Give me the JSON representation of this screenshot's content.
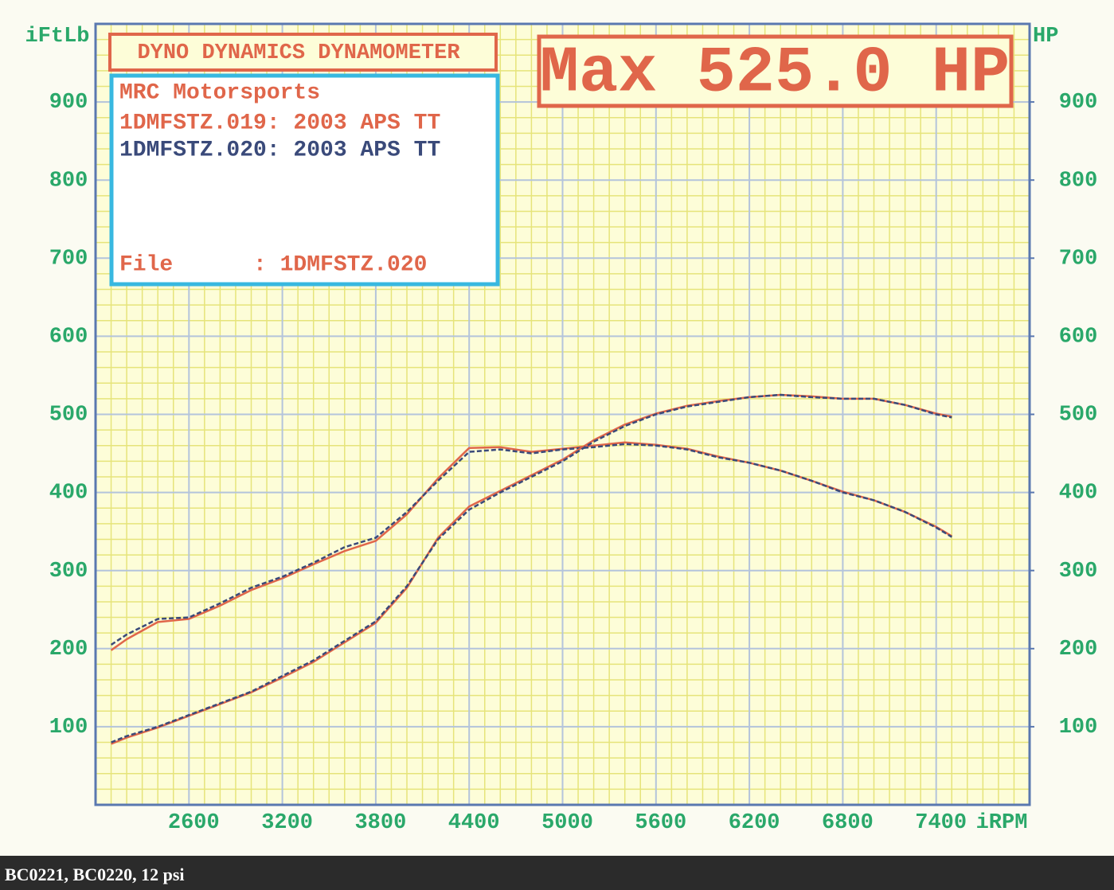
{
  "chart_data": {
    "type": "line",
    "header": "DYNO DYNAMICS DYNAMOMETER",
    "shop": "MRC Motorsports",
    "file": "File      : 1DMFSTZ.020",
    "max_label": "Max 525.0 HP",
    "y_label": "iFtLb",
    "y2_label": "HP",
    "x_label": "iRPM",
    "x": [
      2100,
      2200,
      2400,
      2600,
      2800,
      3000,
      3200,
      3400,
      3600,
      3800,
      4000,
      4200,
      4400,
      4600,
      4800,
      5000,
      5200,
      5400,
      5600,
      5800,
      6000,
      6200,
      6400,
      6600,
      6800,
      7000,
      7200,
      7400,
      7500
    ],
    "series": [
      {
        "name": "1DMFSTZ.019: 2003 APS TT",
        "color": "#e0664a",
        "values": [
          198,
          212,
          234,
          238,
          255,
          275,
          290,
          308,
          325,
          338,
          372,
          418,
          457,
          458,
          452,
          456,
          460,
          464,
          461,
          456,
          446,
          438,
          428,
          415,
          401,
          390,
          375,
          356,
          344
        ]
      },
      {
        "name": "1DMFSTZ.020: 2003 APS TT",
        "color": "#3a4a7a",
        "values": [
          205,
          218,
          238,
          240,
          258,
          278,
          292,
          310,
          330,
          342,
          375,
          415,
          452,
          455,
          450,
          455,
          458,
          462,
          460,
          455,
          445,
          438,
          428,
          415,
          400,
          390,
          375,
          355,
          343
        ]
      },
      {
        "color": "#e0664a",
        "axis": "y2",
        "values": [
          78,
          86,
          99,
          114,
          129,
          144,
          163,
          183,
          208,
          233,
          278,
          342,
          382,
          402,
          422,
          442,
          467,
          487,
          501,
          511,
          517,
          522,
          525,
          523,
          520,
          520,
          512,
          501,
          497
        ]
      },
      {
        "color": "#3a4a7a",
        "axis": "y2",
        "values": [
          80,
          88,
          100,
          115,
          130,
          145,
          165,
          185,
          210,
          235,
          280,
          340,
          378,
          400,
          420,
          440,
          465,
          485,
          500,
          510,
          516,
          522,
          525,
          522,
          520,
          520,
          512,
          500,
          496
        ]
      }
    ],
    "xlim": [
      2000,
      8000
    ],
    "xticks": [
      2600,
      3200,
      3800,
      4400,
      5000,
      5600,
      6200,
      6800,
      7400
    ],
    "ylim": [
      0,
      1000
    ],
    "yticks": [
      100,
      200,
      300,
      400,
      500,
      600,
      700,
      800,
      900
    ],
    "y2lim": [
      0,
      1000
    ],
    "y2ticks": [
      100,
      200,
      300,
      400,
      500,
      600,
      700,
      800,
      900
    ],
    "grid": true,
    "caption": "BC0221, BC0220, 12 psi"
  }
}
